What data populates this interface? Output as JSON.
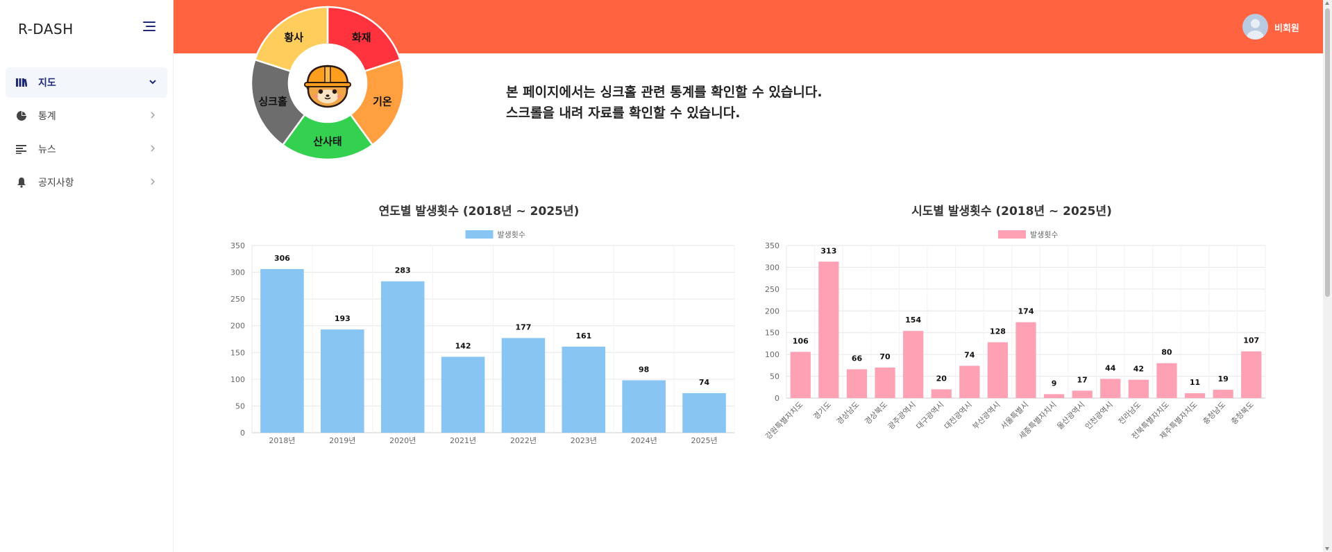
{
  "sidebar": {
    "brand": "R-DASH",
    "items": [
      {
        "label": "지도",
        "icon": "map-icon",
        "active": true
      },
      {
        "label": "통계",
        "icon": "pie-chart-icon",
        "active": false
      },
      {
        "label": "뉴스",
        "icon": "news-icon",
        "active": false
      },
      {
        "label": "공지사항",
        "icon": "bell-icon",
        "active": false
      }
    ]
  },
  "header": {
    "user_label": "비회원"
  },
  "wheel": {
    "segments": [
      {
        "label": "화재",
        "color": "#ff333e"
      },
      {
        "label": "기온",
        "color": "#ff9f40"
      },
      {
        "label": "산사태",
        "color": "#33d14f"
      },
      {
        "label": "싱크홀",
        "color": "#6d6d6d"
      },
      {
        "label": "황사",
        "color": "#ffcd5b"
      }
    ],
    "center_icon": "mascot-icon"
  },
  "intro": {
    "line1": "본 페이지에서는 싱크홀 관련 통계를 확인할 수 있습니다.",
    "line2": "스크롤을 내려 자료를 확인할 수 있습니다."
  },
  "chart_data": [
    {
      "type": "bar",
      "title": "연도별 발생횟수 (2018년 ~ 2025년)",
      "legend": "발생횟수",
      "legend_position": "top",
      "color": "#88c5f2",
      "categories": [
        "2018년",
        "2019년",
        "2020년",
        "2021년",
        "2022년",
        "2023년",
        "2024년",
        "2025년"
      ],
      "values": [
        306,
        193,
        283,
        142,
        177,
        161,
        98,
        74
      ],
      "ylim": [
        0,
        350
      ],
      "yticks": [
        "0",
        "50",
        "100",
        "150",
        "200",
        "250",
        "300",
        "350"
      ],
      "grid": true
    },
    {
      "type": "bar",
      "title": "시도별 발생횟수 (2018년 ~ 2025년)",
      "legend": "발생횟수",
      "legend_position": "top",
      "color": "#ffa1b5",
      "categories": [
        "강원특별자치도",
        "경기도",
        "경상남도",
        "경상북도",
        "광주광역시",
        "대구광역시",
        "대전광역시",
        "부산광역시",
        "서울특별시",
        "세종특별자치시",
        "울산광역시",
        "인천광역시",
        "전라남도",
        "전북특별자치도",
        "제주특별자치도",
        "충청남도",
        "충청북도"
      ],
      "values": [
        106,
        313,
        66,
        70,
        154,
        20,
        74,
        128,
        174,
        9,
        17,
        44,
        42,
        80,
        11,
        19,
        107
      ],
      "ylim": [
        0,
        350
      ],
      "yticks": [
        "0",
        "50",
        "100",
        "150",
        "200",
        "250",
        "300",
        "350"
      ],
      "grid": true
    }
  ]
}
